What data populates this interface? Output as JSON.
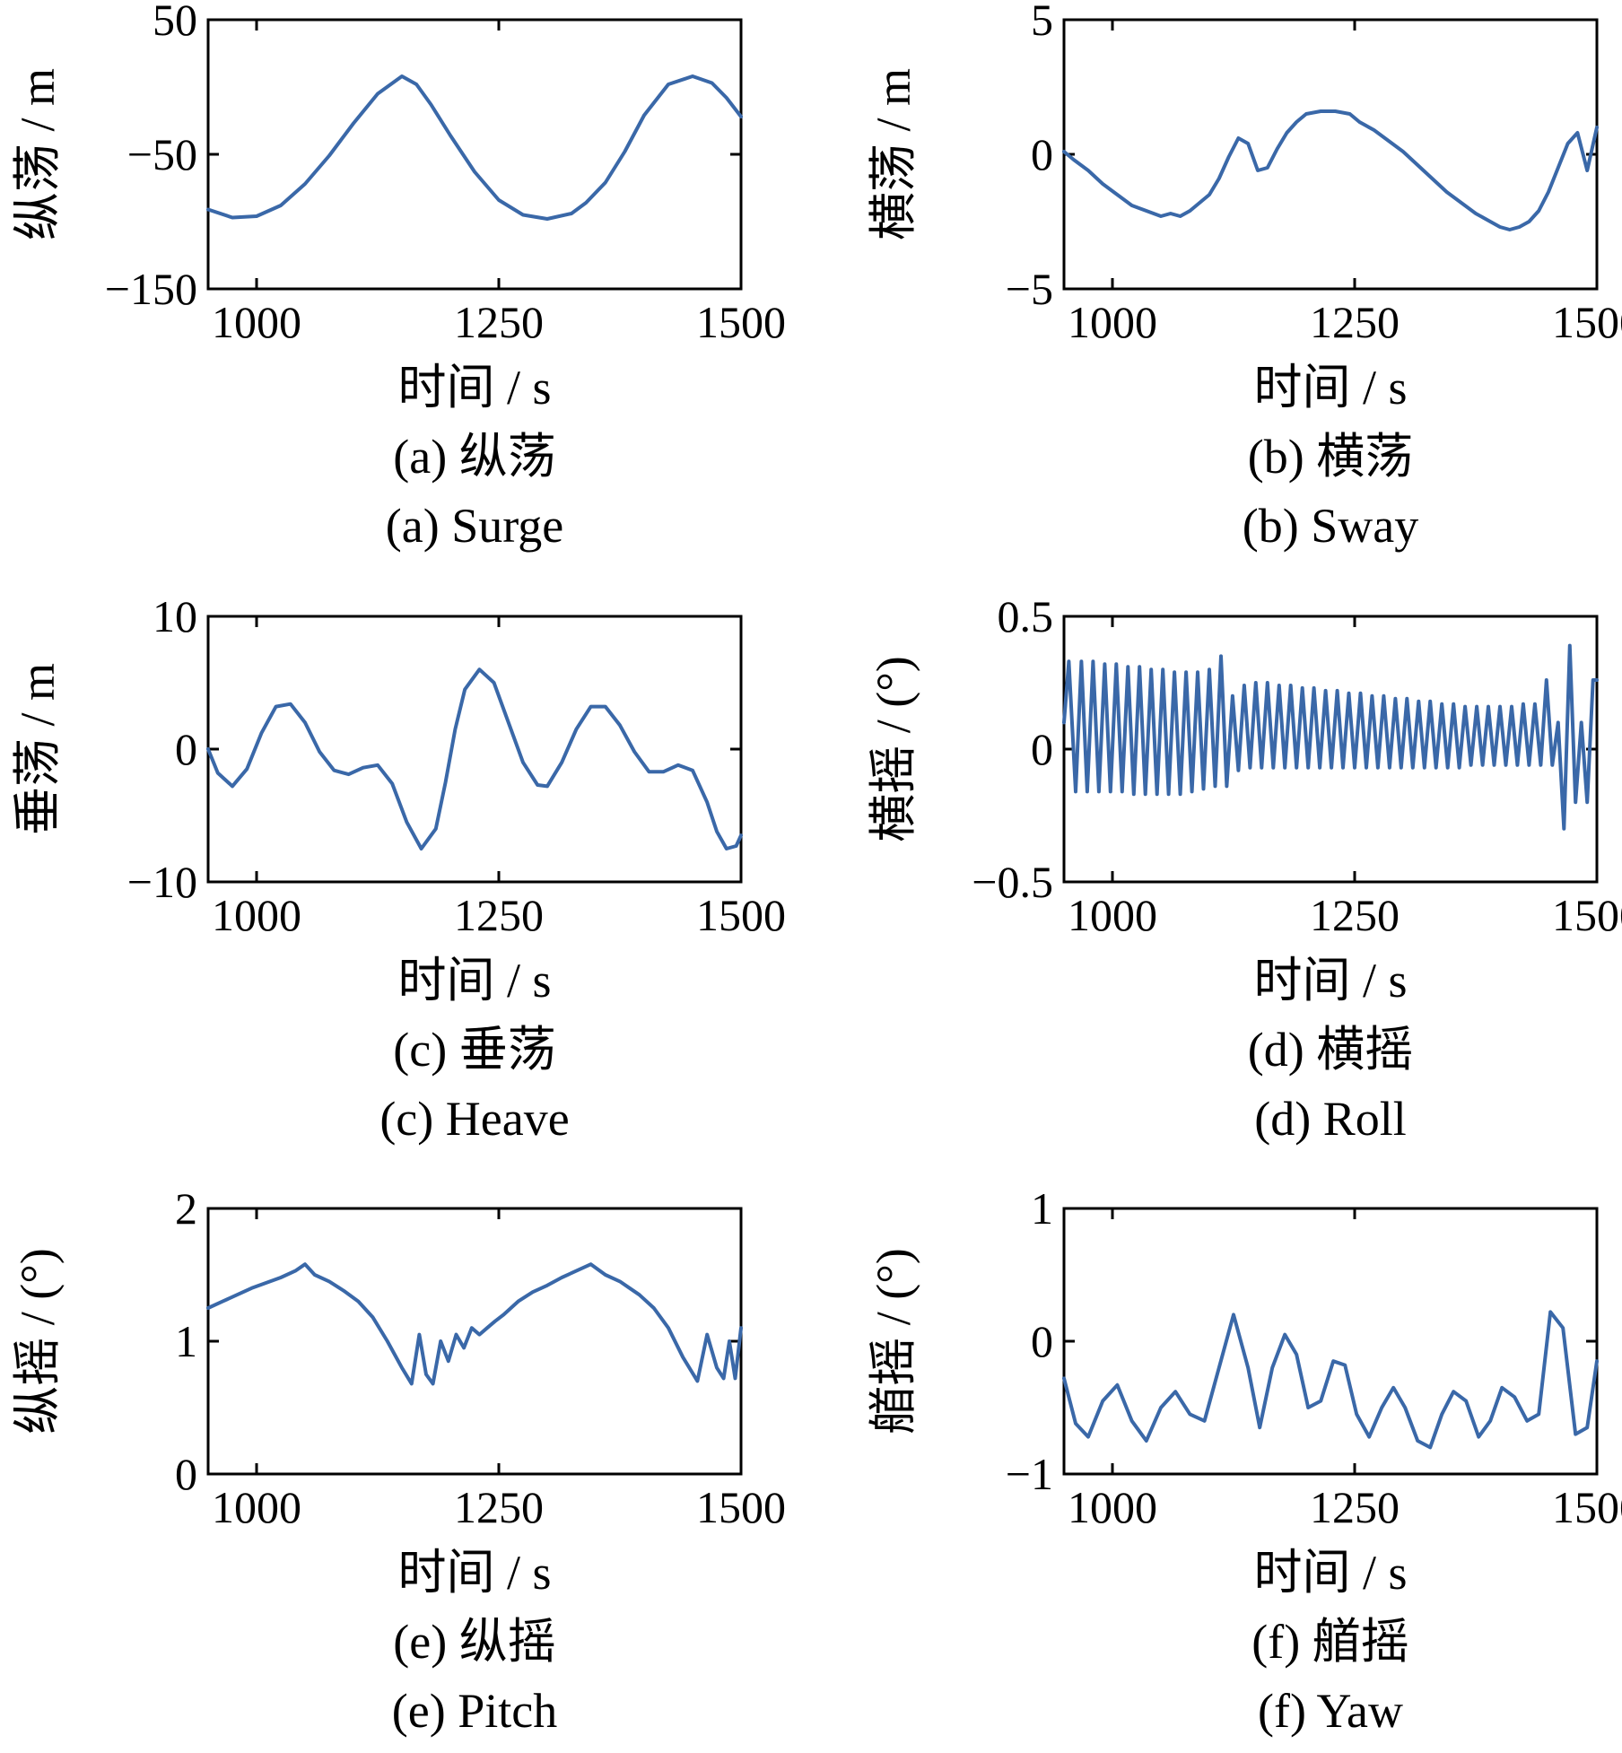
{
  "figure": {
    "series_color": "#3a68a8",
    "background": "#ffffff"
  },
  "chart_data": [
    {
      "id": "a",
      "type": "line",
      "xlabel": "时间 / s",
      "ylabel": "纵荡 / m",
      "caption_cn": "(a) 纵荡",
      "caption_en": "(a) Surge",
      "xlim": [
        950,
        1500
      ],
      "ylim": [
        -150,
        50
      ],
      "xticks": [
        1000,
        1250,
        1500
      ],
      "yticks": [
        -150,
        -50,
        50
      ],
      "xtick_labels": [
        "1000",
        "1250",
        "1500"
      ],
      "ytick_labels": [
        "−150",
        "−50",
        "50"
      ],
      "grid": false,
      "series": [
        {
          "x": [
            950,
            975,
            1000,
            1025,
            1050,
            1075,
            1100,
            1125,
            1150,
            1165,
            1180,
            1200,
            1225,
            1250,
            1275,
            1300,
            1325,
            1340,
            1360,
            1380,
            1400,
            1425,
            1450,
            1470,
            1485,
            1500
          ],
          "y": [
            -91,
            -97,
            -96,
            -88,
            -72,
            -51,
            -27,
            -5,
            8,
            2,
            -13,
            -36,
            -63,
            -84,
            -95,
            -98,
            -94,
            -86,
            -71,
            -48,
            -21,
            2,
            8,
            3,
            -8,
            -22
          ]
        }
      ]
    },
    {
      "id": "b",
      "type": "line",
      "xlabel": "时间 / s",
      "ylabel": "横荡 / m",
      "caption_cn": "(b) 横荡",
      "caption_en": "(b) Sway",
      "xlim": [
        950,
        1500
      ],
      "ylim": [
        -5,
        5
      ],
      "xticks": [
        1000,
        1250,
        1500
      ],
      "yticks": [
        -5,
        0,
        5
      ],
      "xtick_labels": [
        "1000",
        "1250",
        "1500"
      ],
      "ytick_labels": [
        "−5",
        "0",
        "5"
      ],
      "grid": false,
      "series": [
        {
          "x": [
            950,
            960,
            975,
            990,
            1005,
            1020,
            1035,
            1050,
            1060,
            1070,
            1080,
            1090,
            1100,
            1110,
            1120,
            1130,
            1140,
            1150,
            1160,
            1170,
            1180,
            1190,
            1200,
            1215,
            1230,
            1245,
            1255,
            1270,
            1285,
            1300,
            1315,
            1330,
            1345,
            1360,
            1375,
            1390,
            1400,
            1410,
            1420,
            1430,
            1440,
            1450,
            1460,
            1470,
            1480,
            1490,
            1500
          ],
          "y": [
            0.1,
            -0.2,
            -0.6,
            -1.1,
            -1.5,
            -1.9,
            -2.1,
            -2.3,
            -2.2,
            -2.3,
            -2.1,
            -1.8,
            -1.5,
            -0.9,
            -0.1,
            0.6,
            0.4,
            -0.6,
            -0.5,
            0.2,
            0.8,
            1.2,
            1.5,
            1.6,
            1.6,
            1.5,
            1.2,
            0.9,
            0.5,
            0.1,
            -0.4,
            -0.9,
            -1.4,
            -1.8,
            -2.2,
            -2.5,
            -2.7,
            -2.8,
            -2.7,
            -2.5,
            -2.1,
            -1.4,
            -0.5,
            0.4,
            0.8,
            -0.6,
            1.0
          ]
        }
      ]
    },
    {
      "id": "c",
      "type": "line",
      "xlabel": "时间 / s",
      "ylabel": "垂荡 / m",
      "caption_cn": "(c) 垂荡",
      "caption_en": "(c) Heave",
      "xlim": [
        950,
        1500
      ],
      "ylim": [
        -10,
        10
      ],
      "xticks": [
        1000,
        1250,
        1500
      ],
      "yticks": [
        -10,
        0,
        10
      ],
      "xtick_labels": [
        "1000",
        "1250",
        "1500"
      ],
      "ytick_labels": [
        "−10",
        "0",
        "10"
      ],
      "grid": false,
      "series": [
        {
          "x": [
            950,
            960,
            975,
            990,
            1005,
            1020,
            1035,
            1050,
            1065,
            1080,
            1095,
            1110,
            1125,
            1140,
            1155,
            1170,
            1185,
            1195,
            1205,
            1215,
            1230,
            1245,
            1260,
            1275,
            1290,
            1300,
            1315,
            1330,
            1345,
            1360,
            1375,
            1390,
            1405,
            1420,
            1435,
            1450,
            1465,
            1475,
            1485,
            1495,
            1500
          ],
          "y": [
            0,
            -1.8,
            -2.8,
            -1.5,
            1.2,
            3.2,
            3.4,
            2.0,
            -0.2,
            -1.6,
            -1.9,
            -1.4,
            -1.2,
            -2.6,
            -5.5,
            -7.5,
            -6.0,
            -2.5,
            1.5,
            4.5,
            6.0,
            5.0,
            2.0,
            -1.0,
            -2.7,
            -2.8,
            -1.0,
            1.5,
            3.2,
            3.2,
            1.8,
            -0.2,
            -1.7,
            -1.7,
            -1.2,
            -1.6,
            -4.0,
            -6.2,
            -7.5,
            -7.3,
            -6.5
          ]
        }
      ]
    },
    {
      "id": "d",
      "type": "line",
      "xlabel": "时间 / s",
      "ylabel": "横摇 / (°)",
      "caption_cn": "(d) 横摇",
      "caption_en": "(d) Roll",
      "xlim": [
        950,
        1500
      ],
      "ylim": [
        -0.5,
        0.5
      ],
      "xticks": [
        1000,
        1250,
        1500
      ],
      "yticks": [
        -0.5,
        0,
        0.5
      ],
      "xtick_labels": [
        "1000",
        "1250",
        "1500"
      ],
      "ytick_labels": [
        "−0.5",
        "0",
        "0.5"
      ],
      "grid": false,
      "series": [
        {
          "x": [
            950,
            955,
            962,
            968,
            974,
            980,
            986,
            992,
            998,
            1004,
            1010,
            1016,
            1022,
            1028,
            1034,
            1040,
            1046,
            1052,
            1058,
            1064,
            1070,
            1076,
            1082,
            1088,
            1094,
            1100,
            1106,
            1112,
            1118,
            1124,
            1130,
            1136,
            1142,
            1148,
            1154,
            1160,
            1166,
            1172,
            1178,
            1184,
            1190,
            1196,
            1202,
            1208,
            1214,
            1220,
            1226,
            1232,
            1238,
            1244,
            1250,
            1256,
            1262,
            1268,
            1274,
            1280,
            1286,
            1292,
            1298,
            1304,
            1310,
            1316,
            1322,
            1328,
            1334,
            1340,
            1346,
            1352,
            1358,
            1364,
            1370,
            1376,
            1382,
            1388,
            1394,
            1400,
            1406,
            1412,
            1418,
            1424,
            1430,
            1436,
            1442,
            1448,
            1454,
            1460,
            1466,
            1472,
            1478,
            1484,
            1490,
            1496,
            1500
          ],
          "y": [
            0.1,
            0.33,
            -0.16,
            0.33,
            -0.16,
            0.33,
            -0.16,
            0.32,
            -0.16,
            0.32,
            -0.16,
            0.31,
            -0.17,
            0.31,
            -0.17,
            0.3,
            -0.17,
            0.3,
            -0.17,
            0.29,
            -0.17,
            0.29,
            -0.16,
            0.29,
            -0.15,
            0.3,
            -0.14,
            0.35,
            -0.14,
            0.2,
            -0.08,
            0.24,
            -0.07,
            0.25,
            -0.07,
            0.25,
            -0.07,
            0.24,
            -0.07,
            0.24,
            -0.07,
            0.23,
            -0.07,
            0.23,
            -0.07,
            0.22,
            -0.07,
            0.22,
            -0.07,
            0.21,
            -0.07,
            0.21,
            -0.07,
            0.2,
            -0.07,
            0.2,
            -0.07,
            0.19,
            -0.07,
            0.19,
            -0.07,
            0.18,
            -0.07,
            0.18,
            -0.07,
            0.17,
            -0.07,
            0.17,
            -0.07,
            0.16,
            -0.06,
            0.16,
            -0.06,
            0.16,
            -0.06,
            0.16,
            -0.06,
            0.16,
            -0.06,
            0.17,
            -0.06,
            0.17,
            -0.06,
            0.26,
            -0.06,
            0.1,
            -0.3,
            0.39,
            -0.2,
            0.1,
            -0.2,
            0.26,
            0.26
          ]
        }
      ]
    },
    {
      "id": "e",
      "type": "line",
      "xlabel": "时间 / s",
      "ylabel": "纵摇 / (°)",
      "caption_cn": "(e) 纵摇",
      "caption_en": "(e) Pitch",
      "xlim": [
        950,
        1500
      ],
      "ylim": [
        0,
        2
      ],
      "xticks": [
        1000,
        1250,
        1500
      ],
      "yticks": [
        0,
        1,
        2
      ],
      "xtick_labels": [
        "1000",
        "1250",
        "1500"
      ],
      "ytick_labels": [
        "0",
        "1",
        "2"
      ],
      "grid": false,
      "series": [
        {
          "x": [
            950,
            965,
            980,
            995,
            1010,
            1025,
            1040,
            1050,
            1060,
            1075,
            1090,
            1105,
            1120,
            1135,
            1150,
            1160,
            1168,
            1175,
            1182,
            1190,
            1198,
            1206,
            1214,
            1222,
            1230,
            1238,
            1246,
            1255,
            1270,
            1285,
            1300,
            1315,
            1330,
            1345,
            1360,
            1375,
            1385,
            1395,
            1410,
            1425,
            1440,
            1455,
            1465,
            1475,
            1482,
            1488,
            1494,
            1500
          ],
          "y": [
            1.25,
            1.3,
            1.35,
            1.4,
            1.44,
            1.48,
            1.53,
            1.58,
            1.5,
            1.45,
            1.38,
            1.3,
            1.18,
            1.0,
            0.8,
            0.68,
            1.05,
            0.75,
            0.68,
            1.0,
            0.85,
            1.05,
            0.95,
            1.1,
            1.05,
            1.1,
            1.15,
            1.2,
            1.3,
            1.37,
            1.42,
            1.48,
            1.53,
            1.58,
            1.5,
            1.45,
            1.4,
            1.35,
            1.25,
            1.1,
            0.88,
            0.7,
            1.05,
            0.8,
            0.72,
            1.0,
            0.72,
            1.1
          ]
        }
      ]
    },
    {
      "id": "f",
      "type": "line",
      "xlabel": "时间 / s",
      "ylabel": "艏摇 / (°)",
      "caption_cn": "(f) 艏摇",
      "caption_en": "(f) Yaw",
      "xlim": [
        950,
        1500
      ],
      "ylim": [
        -1,
        1
      ],
      "xticks": [
        1000,
        1250,
        1500
      ],
      "yticks": [
        -1,
        0,
        1
      ],
      "xtick_labels": [
        "1000",
        "1250",
        "1500"
      ],
      "ytick_labels": [
        "−1",
        "0",
        "1"
      ],
      "grid": false,
      "series": [
        {
          "x": [
            950,
            962,
            975,
            990,
            1005,
            1020,
            1035,
            1050,
            1065,
            1080,
            1095,
            1110,
            1125,
            1140,
            1152,
            1165,
            1178,
            1190,
            1202,
            1215,
            1228,
            1240,
            1252,
            1265,
            1278,
            1290,
            1302,
            1315,
            1328,
            1340,
            1352,
            1365,
            1378,
            1390,
            1402,
            1415,
            1428,
            1440,
            1452,
            1465,
            1478,
            1490,
            1500
          ],
          "y": [
            -0.28,
            -0.62,
            -0.72,
            -0.45,
            -0.33,
            -0.6,
            -0.75,
            -0.5,
            -0.38,
            -0.55,
            -0.6,
            -0.2,
            0.2,
            -0.2,
            -0.65,
            -0.2,
            0.05,
            -0.1,
            -0.5,
            -0.45,
            -0.15,
            -0.18,
            -0.55,
            -0.72,
            -0.5,
            -0.35,
            -0.5,
            -0.75,
            -0.8,
            -0.55,
            -0.38,
            -0.45,
            -0.72,
            -0.6,
            -0.35,
            -0.42,
            -0.6,
            -0.55,
            0.22,
            0.1,
            -0.7,
            -0.65,
            -0.15
          ]
        }
      ]
    }
  ]
}
